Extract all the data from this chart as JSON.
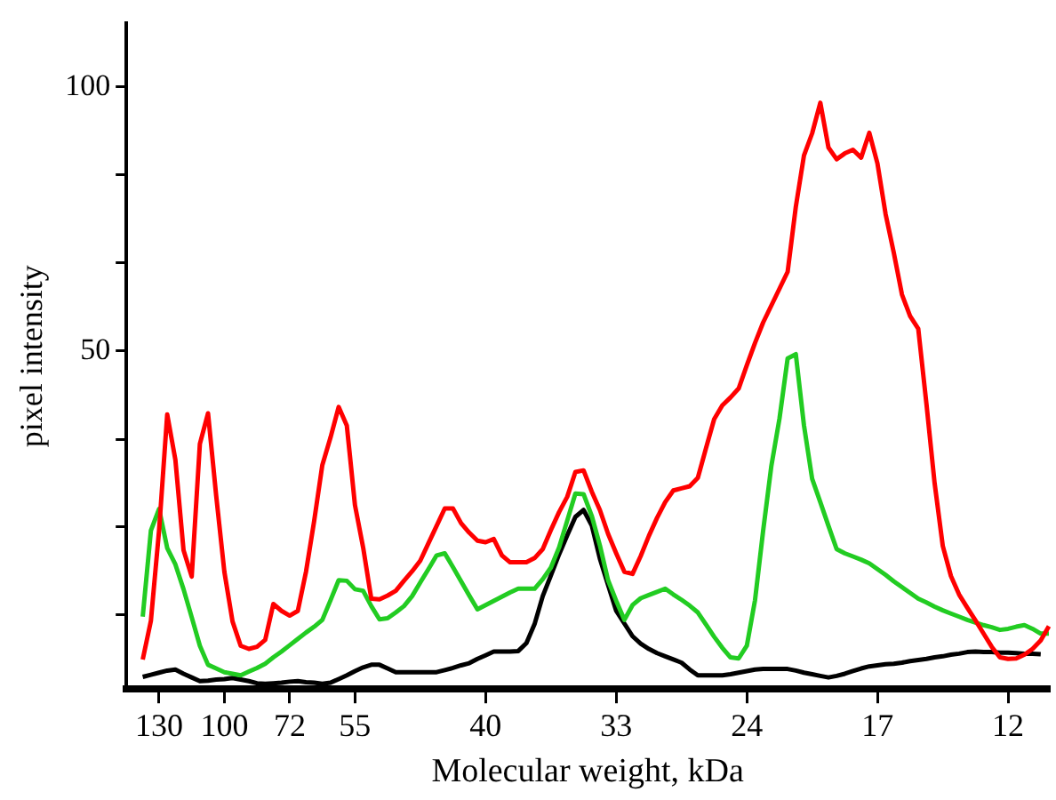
{
  "chart_data": {
    "type": "line",
    "xlabel": "Molecular weight, kDa",
    "ylabel": "pixel intensity",
    "categories": [
      null,
      null,
      null,
      null,
      "130",
      null,
      null,
      null,
      null,
      null,
      null,
      null,
      "100",
      null,
      null,
      null,
      null,
      null,
      null,
      null,
      "72",
      null,
      null,
      null,
      null,
      null,
      null,
      null,
      "55",
      null,
      null,
      null,
      null,
      null,
      null,
      null,
      null,
      null,
      null,
      null,
      null,
      null,
      null,
      null,
      "40",
      null,
      null,
      null,
      null,
      null,
      null,
      null,
      null,
      null,
      null,
      null,
      null,
      null,
      null,
      null,
      "33",
      null,
      null,
      null,
      null,
      null,
      null,
      null,
      null,
      null,
      null,
      null,
      null,
      null,
      null,
      null,
      "24",
      null,
      null,
      null,
      null,
      null,
      null,
      null,
      null,
      null,
      null,
      null,
      null,
      null,
      null,
      null,
      "17",
      null,
      null,
      null,
      null,
      null,
      null,
      null,
      null,
      null,
      null,
      null,
      null,
      null,
      null,
      null,
      "12",
      null,
      null,
      null,
      null,
      null
    ],
    "ylim": [
      -14,
      112
    ],
    "yticks": [
      {
        "value": 0,
        "label": null
      },
      {
        "value": 16.7,
        "label": null
      },
      {
        "value": 33.3,
        "label": null
      },
      50,
      {
        "value": 66.7,
        "label": null
      },
      {
        "value": 83.3,
        "label": null
      },
      100
    ],
    "legend": false,
    "marker": "none",
    "line_style": "solid",
    "series": [
      {
        "color": "#ff0000",
        "values": [
          null,
          null,
          -8.4,
          -1.1,
          16,
          38,
          29.4,
          12.3,
          7.3,
          32.4,
          38.2,
          22.6,
          8.2,
          -1.2,
          -5.8,
          -6.4,
          -6.0,
          -4.7,
          2.1,
          0.8,
          -0.1,
          0.8,
          8.2,
          17.8,
          28.4,
          33.6,
          39.4,
          35.9,
          20.8,
          12.8,
          3.1,
          3.0,
          3.7,
          4.6,
          6.5,
          8.3,
          10.3,
          13.6,
          16.9,
          20.2,
          20.2,
          17.4,
          15.6,
          14.1,
          13.8,
          14.4,
          11.3,
          10,
          10,
          10,
          10.8,
          12.5,
          16.1,
          19.5,
          22.4,
          27.1,
          27.4,
          23.4,
          19.9,
          15.4,
          11.7,
          8.2,
          7.8,
          11.2,
          15.0,
          18.4,
          21.4,
          23.6,
          24.0,
          24.4,
          26.0,
          31.6,
          37.1,
          39.7,
          41.2,
          42.9,
          47.3,
          51.5,
          55.4,
          58.6,
          61.8,
          65.0,
          77.3,
          87.0,
          91.2,
          97.0,
          88.5,
          86.3,
          87.4,
          88.1,
          86.6,
          91.3,
          85.5,
          75.9,
          68.6,
          60.7,
          56.6,
          54.2,
          40.0,
          25.0,
          13.1,
          7.4,
          3.9,
          1.4,
          -1.0,
          -3.5,
          -6.0,
          -8.0,
          -8.3,
          -8.2,
          -7.5,
          -6.4,
          -4.8,
          -2.1
        ]
      },
      {
        "color": "#22cc22",
        "values": [
          null,
          null,
          -0.3,
          16.0,
          20.1,
          12.7,
          9.6,
          4.9,
          -0.4,
          -5.8,
          -9.4,
          -10.1,
          -10.8,
          -11.1,
          -11.4,
          -10.7,
          -10.0,
          -9.2,
          -8.0,
          -6.9,
          -5.7,
          -4.5,
          -3.3,
          -2.2,
          -0.9,
          2.8,
          6.6,
          6.5,
          4.9,
          4.6,
          1.7,
          -0.8,
          -0.6,
          0.5,
          1.7,
          3.6,
          6.2,
          8.7,
          11.3,
          11.7,
          9.1,
          6.4,
          3.7,
          1.1,
          1.9,
          2.7,
          3.5,
          4.3,
          5.0,
          5.0,
          5.0,
          6.8,
          9.0,
          12.8,
          17.9,
          23.0,
          22.9,
          18.8,
          13.2,
          6.6,
          2.7,
          -0.9,
          1.9,
          3.2,
          3.8,
          4.4,
          5.0,
          3.9,
          2.9,
          1.8,
          0.5,
          -1.8,
          -4.1,
          -6.2,
          -8.0,
          -8.2,
          -5.8,
          2.8,
          16.0,
          28.2,
          37.2,
          48.6,
          49.4,
          35.9,
          25.8,
          21.4,
          16.9,
          12.5,
          11.7,
          11.1,
          10.5,
          9.8,
          8.7,
          7.6,
          6.4,
          5.3,
          4.2,
          3.1,
          2.4,
          1.6,
          0.9,
          0.3,
          -0.3,
          -0.9,
          -1.4,
          -1.9,
          -2.3,
          -2.8,
          -2.6,
          -2.2,
          -1.9,
          -2.6,
          -3.5,
          -3.5
        ]
      },
      {
        "color": "#000000",
        "values": [
          null,
          null,
          -11.7,
          -11.3,
          -10.9,
          -10.5,
          -10.3,
          -11.1,
          -11.8,
          -12.5,
          -12.4,
          -12.2,
          -12.1,
          -11.9,
          -12.2,
          -12.5,
          -12.9,
          -13.0,
          -12.9,
          -12.8,
          -12.6,
          -12.5,
          -12.7,
          -12.8,
          -13.0,
          -12.8,
          -12.1,
          -11.4,
          -10.6,
          -9.9,
          -9.4,
          -9.4,
          -10.1,
          -10.8,
          -10.8,
          -10.8,
          -10.8,
          -10.8,
          -10.8,
          -10.4,
          -10.0,
          -9.5,
          -9.1,
          -8.3,
          -7.6,
          -6.9,
          -6.9,
          -6.9,
          -6.8,
          -5.3,
          -1.7,
          3.6,
          7.5,
          11.5,
          15.1,
          18.6,
          19.9,
          17.0,
          10.7,
          5.7,
          0.8,
          -1.6,
          -4.0,
          -5.4,
          -6.4,
          -7.2,
          -7.8,
          -8.4,
          -9.0,
          -10.3,
          -11.4,
          -11.4,
          -11.4,
          -11.4,
          -11.2,
          -10.9,
          -10.6,
          -10.3,
          -10.2,
          -10.2,
          -10.2,
          -10.2,
          -10.5,
          -10.9,
          -11.2,
          -11.5,
          -11.8,
          -11.5,
          -11.1,
          -10.6,
          -10.1,
          -9.7,
          -9.5,
          -9.3,
          -9.2,
          -9.0,
          -8.7,
          -8.5,
          -8.3,
          -8.0,
          -7.8,
          -7.5,
          -7.3,
          -7.0,
          -6.9,
          -7.0,
          -7.0,
          -7.1,
          -7.1,
          -7.2,
          -7.3,
          -7.3,
          -7.4,
          null
        ]
      }
    ]
  }
}
